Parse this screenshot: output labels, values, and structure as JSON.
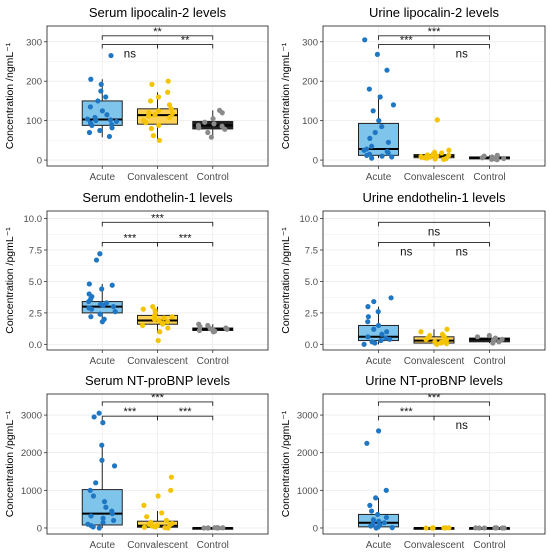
{
  "panel_titles_note": "",
  "styles": {
    "acute_fill": "#7FC4EA",
    "acute_point": "#1F77C4",
    "convalescent_fill": "#FFD257",
    "convalescent_point": "#F5C400",
    "control_fill": "#222222",
    "control_point": "#8A8A8A",
    "grid": "#EBEBEB",
    "panel_border": "#333333",
    "bracket": "#222222"
  },
  "chart_data": [
    {
      "type": "box",
      "title": "Serum lipocalin-2 levels",
      "ylabel": "Concentration /ngmL⁻¹",
      "ylim": [
        -15,
        340
      ],
      "yticks": [
        0,
        100,
        200,
        300
      ],
      "categories": [
        "Acute",
        "Convalescent",
        "Control"
      ],
      "boxes": [
        {
          "whisker_low": 58,
          "q1": 88,
          "median": 103,
          "q3": 150,
          "whisker_high": 205
        },
        {
          "whisker_low": 50,
          "q1": 91,
          "median": 114,
          "q3": 130,
          "whisker_high": 172
        },
        {
          "whisker_low": 58,
          "q1": 79,
          "median": 88,
          "q3": 98,
          "whisker_high": 126
        }
      ],
      "points": [
        [
          60,
          70,
          75,
          82,
          88,
          90,
          94,
          98,
          100,
          102,
          104,
          108,
          115,
          125,
          135,
          150,
          160,
          175,
          192,
          205,
          265
        ],
        [
          50,
          62,
          80,
          88,
          95,
          100,
          108,
          112,
          115,
          118,
          120,
          125,
          130,
          140,
          150,
          160,
          172,
          192,
          200
        ],
        [
          58,
          70,
          78,
          82,
          86,
          88,
          92,
          96,
          105,
          120,
          126
        ]
      ],
      "brackets": [
        {
          "from": 0,
          "to": 2,
          "y": 315,
          "label": "**"
        },
        {
          "from": 0,
          "to": 1,
          "y": 293,
          "label": "ns"
        },
        {
          "from": 1,
          "to": 2,
          "y": 293,
          "label": "**"
        }
      ]
    },
    {
      "type": "box",
      "title": "Urine lipocalin-2 levels",
      "ylabel": "Concentration /ngmL⁻¹",
      "ylim": [
        -15,
        340
      ],
      "yticks": [
        0,
        100,
        200,
        300
      ],
      "categories": [
        "Acute",
        "Convalescent",
        "Control"
      ],
      "boxes": [
        {
          "whisker_low": 5,
          "q1": 12,
          "median": 28,
          "q3": 93,
          "whisker_high": 165
        },
        {
          "whisker_low": 2,
          "q1": 6,
          "median": 10,
          "q3": 14,
          "whisker_high": 20
        },
        {
          "whisker_low": 1,
          "q1": 3,
          "median": 6,
          "q3": 8,
          "whisker_high": 12
        }
      ],
      "points": [
        [
          5,
          8,
          10,
          12,
          15,
          18,
          22,
          25,
          28,
          35,
          45,
          55,
          70,
          85,
          100,
          125,
          140,
          160,
          180,
          228,
          268,
          305
        ],
        [
          2,
          3,
          4,
          5,
          6,
          7,
          8,
          9,
          10,
          11,
          12,
          13,
          14,
          15,
          18,
          20,
          25,
          102
        ],
        [
          1,
          2,
          3,
          4,
          5,
          6,
          7,
          8,
          10,
          12
        ]
      ],
      "brackets": [
        {
          "from": 0,
          "to": 2,
          "y": 315,
          "label": "***"
        },
        {
          "from": 0,
          "to": 1,
          "y": 293,
          "label": "***"
        },
        {
          "from": 1,
          "to": 2,
          "y": 293,
          "label": "ns"
        }
      ]
    },
    {
      "type": "box",
      "title": "Serum endothelin-1 levels",
      "ylabel": "Concentration /pgmL⁻¹",
      "ylim": [
        -0.45,
        10.6
      ],
      "yticks": [
        0.0,
        2.5,
        5.0,
        7.5,
        10.0
      ],
      "ytick_labels": [
        "0.0",
        "2.5",
        "5.0",
        "7.5",
        "10.0"
      ],
      "categories": [
        "Acute",
        "Convalescent",
        "Control"
      ],
      "boxes": [
        {
          "whisker_low": 1.6,
          "q1": 2.5,
          "median": 3.0,
          "q3": 3.4,
          "whisker_high": 4.8
        },
        {
          "whisker_low": 0.9,
          "q1": 1.6,
          "median": 1.9,
          "q3": 2.3,
          "whisker_high": 3.0
        },
        {
          "whisker_low": 0.9,
          "q1": 1.1,
          "median": 1.2,
          "q3": 1.3,
          "whisker_high": 1.6
        }
      ],
      "points": [
        [
          1.8,
          2.0,
          2.2,
          2.4,
          2.6,
          2.8,
          2.9,
          3.0,
          3.1,
          3.2,
          3.3,
          3.4,
          3.6,
          3.8,
          4.0,
          4.4,
          4.7,
          4.8,
          6.7,
          7.2
        ],
        [
          0.3,
          1.0,
          1.3,
          1.5,
          1.6,
          1.7,
          1.8,
          1.9,
          2.0,
          2.1,
          2.2,
          2.3,
          2.5,
          2.7,
          2.8,
          3.0
        ],
        [
          1.0,
          1.05,
          1.1,
          1.15,
          1.2,
          1.25,
          1.3,
          1.4,
          1.5,
          1.6
        ]
      ],
      "brackets": [
        {
          "from": 0,
          "to": 2,
          "y": 9.7,
          "label": "***"
        },
        {
          "from": 0,
          "to": 1,
          "y": 8.1,
          "label": "***"
        },
        {
          "from": 1,
          "to": 2,
          "y": 8.1,
          "label": "***"
        }
      ]
    },
    {
      "type": "box",
      "title": "Urine endothelin-1 levels",
      "ylabel": "Concentration /pgmL⁻¹",
      "ylim": [
        -0.45,
        10.6
      ],
      "yticks": [
        0.0,
        2.5,
        5.0,
        7.5,
        10.0
      ],
      "ytick_labels": [
        "0.0",
        "2.5",
        "5.0",
        "7.5",
        "10.0"
      ],
      "categories": [
        "Acute",
        "Convalescent",
        "Control"
      ],
      "boxes": [
        {
          "whisker_low": 0.0,
          "q1": 0.3,
          "median": 0.6,
          "q3": 1.5,
          "whisker_high": 3.0
        },
        {
          "whisker_low": 0.0,
          "q1": 0.1,
          "median": 0.3,
          "q3": 0.6,
          "whisker_high": 1.2
        },
        {
          "whisker_low": 0.1,
          "q1": 0.2,
          "median": 0.4,
          "q3": 0.5,
          "whisker_high": 0.7
        }
      ],
      "points": [
        [
          0.0,
          0.1,
          0.2,
          0.3,
          0.4,
          0.5,
          0.6,
          0.8,
          1.0,
          1.2,
          1.5,
          1.8,
          2.2,
          2.6,
          3.0,
          3.4,
          3.7
        ],
        [
          0.0,
          0.05,
          0.1,
          0.15,
          0.2,
          0.3,
          0.35,
          0.4,
          0.5,
          0.6,
          0.7,
          0.8,
          1.0,
          1.2
        ],
        [
          0.1,
          0.2,
          0.3,
          0.35,
          0.4,
          0.5,
          0.6,
          0.7
        ]
      ],
      "brackets": [
        {
          "from": 0,
          "to": 2,
          "y": 9.7,
          "label": "ns"
        },
        {
          "from": 0,
          "to": 1,
          "y": 8.1,
          "label": "ns"
        },
        {
          "from": 1,
          "to": 2,
          "y": 8.1,
          "label": "ns"
        }
      ]
    },
    {
      "type": "box",
      "title": "Serum NT-proBNP levels",
      "ylabel": "Concentration /pgmL⁻¹",
      "ylim": [
        -160,
        3560
      ],
      "yticks": [
        0,
        1000,
        2000,
        3000
      ],
      "categories": [
        "Acute",
        "Convalescent",
        "Control"
      ],
      "boxes": [
        {
          "whisker_low": 0,
          "q1": 80,
          "median": 380,
          "q3": 1020,
          "whisker_high": 2200
        },
        {
          "whisker_low": 0,
          "q1": 20,
          "median": 60,
          "q3": 180,
          "whisker_high": 450
        },
        {
          "whisker_low": 0,
          "q1": 0,
          "median": 0,
          "q3": 5,
          "whisker_high": 10
        }
      ],
      "points": [
        [
          0,
          30,
          60,
          100,
          150,
          200,
          260,
          320,
          380,
          450,
          550,
          700,
          850,
          1000,
          1200,
          1650,
          1800,
          2200,
          2800,
          2950,
          3050
        ],
        [
          0,
          10,
          20,
          30,
          50,
          60,
          80,
          100,
          120,
          150,
          200,
          300,
          400,
          600,
          850,
          1000,
          1350
        ],
        [
          0,
          0,
          0,
          2,
          4,
          6,
          8,
          10
        ]
      ],
      "brackets": [
        {
          "from": 0,
          "to": 2,
          "y": 3350,
          "label": "***"
        },
        {
          "from": 0,
          "to": 1,
          "y": 2970,
          "label": "***"
        },
        {
          "from": 1,
          "to": 2,
          "y": 2970,
          "label": "***"
        }
      ]
    },
    {
      "type": "box",
      "title": "Urine NT-proBNP levels",
      "ylabel": "Concentration /pgmL⁻¹",
      "ylim": [
        -160,
        3560
      ],
      "yticks": [
        0,
        1000,
        2000,
        3000
      ],
      "categories": [
        "Acute",
        "Convalescent",
        "Control"
      ],
      "boxes": [
        {
          "whisker_low": 0,
          "q1": 30,
          "median": 140,
          "q3": 360,
          "whisker_high": 800
        },
        {
          "whisker_low": 0,
          "q1": 0,
          "median": 0,
          "q3": 3,
          "whisker_high": 5
        },
        {
          "whisker_low": 0,
          "q1": 0,
          "median": 0,
          "q3": 3,
          "whisker_high": 5
        }
      ],
      "points": [
        [
          0,
          10,
          30,
          50,
          80,
          110,
          140,
          180,
          220,
          280,
          360,
          450,
          600,
          800,
          1000,
          2250,
          2580
        ],
        [
          0,
          0,
          0,
          1,
          2,
          3,
          4,
          5
        ],
        [
          0,
          0,
          0,
          1,
          2,
          3,
          4,
          5
        ]
      ],
      "brackets": [
        {
          "from": 0,
          "to": 2,
          "y": 3350,
          "label": "***"
        },
        {
          "from": 0,
          "to": 1,
          "y": 2970,
          "label": "***"
        },
        {
          "from": 1,
          "to": 2,
          "y": 2970,
          "label": "ns"
        }
      ]
    }
  ]
}
